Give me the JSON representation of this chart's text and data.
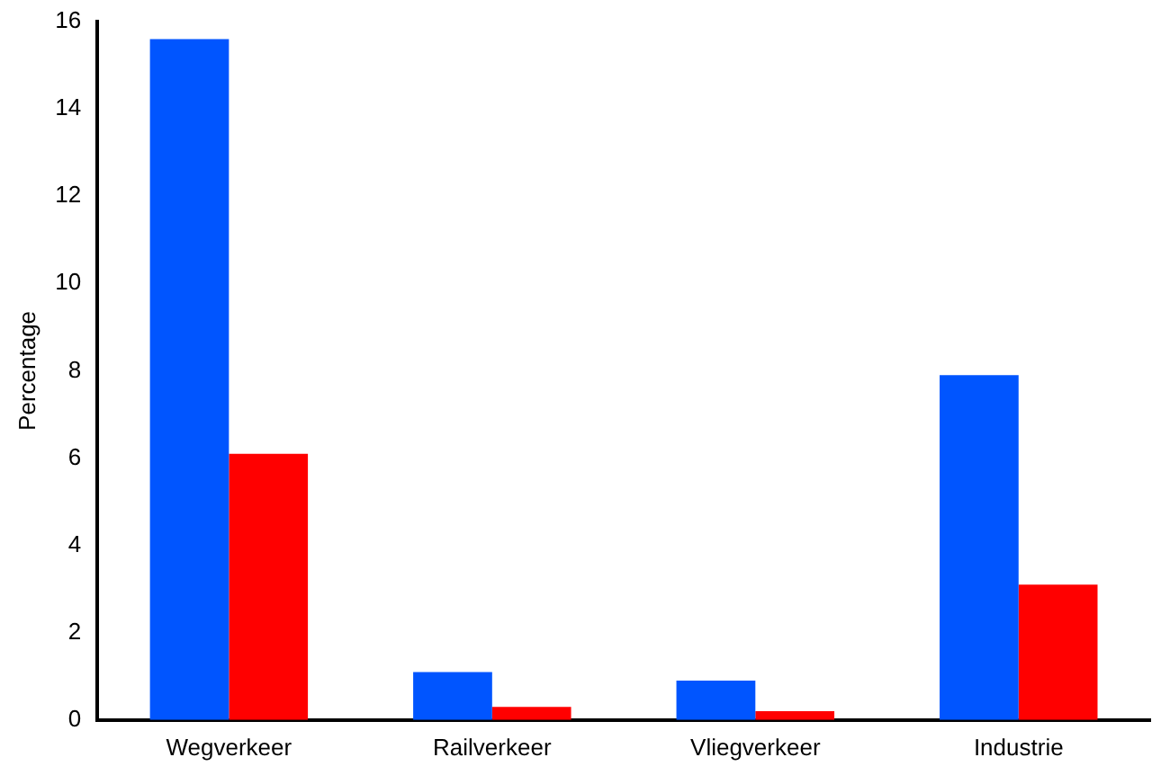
{
  "chart_data": {
    "type": "bar",
    "ylabel": "Percentage",
    "categories": [
      "Wegverkeer",
      "Railverkeer",
      "Vliegverkeer",
      "Industrie"
    ],
    "series": [
      {
        "color": "#0055ff",
        "values": [
          15.6,
          1.1,
          0.9,
          7.9
        ]
      },
      {
        "color": "#ff0000",
        "values": [
          6.1,
          0.3,
          0.2,
          3.1
        ]
      }
    ],
    "ylim": [
      0,
      16
    ],
    "yticks": [
      0,
      2,
      4,
      6,
      8,
      10,
      12,
      14,
      16
    ],
    "grid": false,
    "legend": false
  }
}
